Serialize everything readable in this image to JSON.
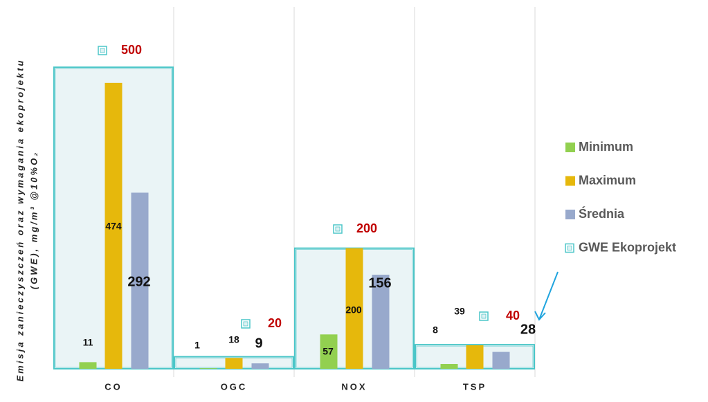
{
  "chart_data": {
    "type": "bar",
    "ylabel": [
      "Emisja zanieczyszczeń oraz wymagania ekoprojektu",
      "(GWE), mg/m³ @10%O₂"
    ],
    "categories": [
      "CO",
      "OGC",
      "NOX",
      "TSP"
    ],
    "series": [
      {
        "name": "Minimum",
        "color": "#92d050",
        "values": [
          11,
          1,
          57,
          8
        ]
      },
      {
        "name": "Maximum",
        "color": "#e6b80c",
        "values": [
          474,
          18,
          200,
          39
        ]
      },
      {
        "name": "Średnia",
        "color": "#98a9cc",
        "values": [
          292,
          9,
          156,
          28
        ]
      },
      {
        "name": "GWE Ekoprojekt",
        "color": "#4bc6c8",
        "draw": "band",
        "values": [
          500,
          20,
          200,
          40
        ]
      }
    ],
    "ylim": [
      0,
      600
    ],
    "grid": true,
    "legend": "right"
  }
}
